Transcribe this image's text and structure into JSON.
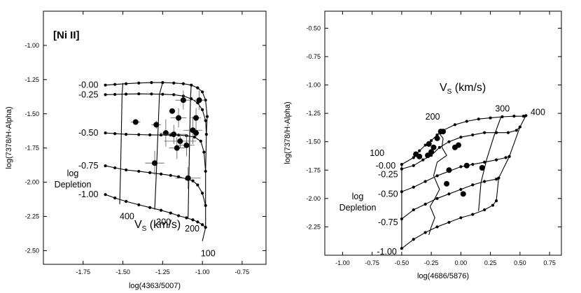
{
  "chart_data": [
    {
      "type": "line",
      "title": "[Ni II]",
      "xlabel": "log(4363/5007)",
      "ylabel": "log(7378/H-Alpha)",
      "xlim": [
        -2.0,
        -0.6
      ],
      "ylim": [
        -2.6,
        -0.75
      ],
      "xticks": [
        -1.75,
        -1.5,
        -1.25,
        -1.0,
        -0.75
      ],
      "yticks": [
        -1.0,
        -1.25,
        -1.5,
        -1.75,
        -2.0,
        -2.25,
        -2.5
      ],
      "grid": false,
      "depletion_label": [
        "log",
        "Depletion"
      ],
      "velocity_label": {
        "main": "V",
        "sub": "S",
        "unit": " (km/s)"
      },
      "series": [
        {
          "name": "-0.00",
          "x": [
            -1.61,
            -1.55,
            -1.48,
            -1.4,
            -1.32,
            -1.25,
            -1.18,
            -1.12,
            -1.07,
            -1.03,
            -1.0,
            -0.98,
            -0.97
          ],
          "y": [
            -1.29,
            -1.285,
            -1.28,
            -1.275,
            -1.272,
            -1.272,
            -1.275,
            -1.28,
            -1.29,
            -1.31,
            -1.34,
            -1.4,
            -1.52
          ]
        },
        {
          "name": "-0.25",
          "x": [
            -1.61,
            -1.55,
            -1.48,
            -1.4,
            -1.32,
            -1.25,
            -1.18,
            -1.12,
            -1.07,
            -1.03,
            -1.0,
            -0.98,
            -0.975
          ],
          "y": [
            -1.36,
            -1.358,
            -1.356,
            -1.354,
            -1.355,
            -1.357,
            -1.36,
            -1.37,
            -1.39,
            -1.42,
            -1.47,
            -1.55,
            -1.65
          ]
        },
        {
          "name": "-0.50",
          "x": [
            -1.61,
            -1.55,
            -1.48,
            -1.4,
            -1.33,
            -1.26,
            -1.2,
            -1.15,
            -1.1,
            -1.05,
            -1.01,
            -0.99,
            -0.98
          ],
          "y": [
            -1.64,
            -1.645,
            -1.65,
            -1.652,
            -1.654,
            -1.655,
            -1.655,
            -1.655,
            -1.66,
            -1.67,
            -1.7,
            -1.78,
            -1.92
          ]
        },
        {
          "name": "-0.75",
          "x": [
            -1.61,
            -1.55,
            -1.48,
            -1.4,
            -1.33,
            -1.26,
            -1.2,
            -1.15,
            -1.1,
            -1.06,
            -1.03,
            -1.0,
            -0.98
          ],
          "y": [
            -1.88,
            -1.895,
            -1.91,
            -1.92,
            -1.93,
            -1.94,
            -1.95,
            -1.96,
            -1.975,
            -1.99,
            -2.02,
            -2.08,
            -2.17
          ]
        },
        {
          "name": "-1.00",
          "x": [
            -1.61,
            -1.55,
            -1.48,
            -1.4,
            -1.33,
            -1.26,
            -1.2,
            -1.15,
            -1.1,
            -1.06,
            -1.03,
            -1.0,
            -0.98
          ],
          "y": [
            -2.09,
            -2.115,
            -2.14,
            -2.165,
            -2.185,
            -2.205,
            -2.225,
            -2.245,
            -2.26,
            -2.275,
            -2.29,
            -2.31,
            -2.33
          ]
        }
      ],
      "velocity_lines": [
        {
          "name": "400",
          "x": [
            -1.5,
            -1.505,
            -1.51,
            -1.515,
            -1.52
          ],
          "y": [
            -1.275,
            -1.355,
            -1.652,
            -1.925,
            -2.16
          ]
        },
        {
          "name": "300",
          "x": [
            -1.25,
            -1.27,
            -1.28,
            -1.29,
            -1.3
          ],
          "y": [
            -1.272,
            -1.357,
            -1.655,
            -1.94,
            -2.2
          ]
        },
        {
          "name": "200",
          "x": [
            -1.07,
            -1.075,
            -1.08,
            -1.085,
            -1.09
          ],
          "y": [
            -1.29,
            -1.39,
            -1.66,
            -1.975,
            -2.26
          ]
        },
        {
          "name": "100",
          "x": [
            -0.97,
            -0.975,
            -0.98,
            -0.98,
            -0.98,
            -0.99,
            -1.0
          ],
          "y": [
            -1.52,
            -1.65,
            -1.92,
            -2.17,
            -2.33,
            -2.38,
            -2.43
          ]
        }
      ],
      "series_labels": [
        {
          "text": "-0.00",
          "x": -1.78,
          "y": -1.29
        },
        {
          "text": "-0.25",
          "x": -1.78,
          "y": -1.36
        },
        {
          "text": "-0.50",
          "x": -1.78,
          "y": -1.64
        },
        {
          "text": "-0.75",
          "x": -1.78,
          "y": -1.88
        },
        {
          "text": "-1.00",
          "x": -1.78,
          "y": -2.09
        }
      ],
      "velocity_labels": [
        {
          "text": "400",
          "x": -1.52,
          "y": -2.25
        },
        {
          "text": "300",
          "x": -1.29,
          "y": -2.29
        },
        {
          "text": "200",
          "x": -1.11,
          "y": -2.34
        },
        {
          "text": "100",
          "x": -1.01,
          "y": -2.52
        }
      ],
      "observations": {
        "x": [
          -1.42,
          -1.29,
          -1.19,
          -1.15,
          -1.12,
          -1.04,
          -1.23,
          -1.18,
          -1.06,
          -1.04,
          -1.02,
          -1.14,
          -1.1,
          -1.16,
          -1.3,
          -1.09
        ],
        "y": [
          -1.56,
          -1.58,
          -1.48,
          -1.53,
          -1.4,
          -1.53,
          -1.64,
          -1.65,
          -1.62,
          -1.64,
          -1.4,
          -1.7,
          -1.73,
          -1.75,
          -1.86,
          -1.97
        ],
        "xerr": [
          0.03,
          0.03,
          0.02,
          0.05,
          0.05,
          0.03,
          0.04,
          0.08,
          0.06,
          0.02,
          0.04,
          0.1,
          0.05,
          0.05,
          0.06,
          0.08
        ],
        "yerr": [
          0.01,
          0.03,
          0.01,
          0.07,
          0.07,
          0.07,
          0.1,
          0.07,
          0.1,
          0.04,
          0.07,
          0.05,
          0.08,
          0.08,
          0.09,
          0.08
        ]
      }
    },
    {
      "type": "line",
      "title": "",
      "xlabel": "log(4686/5876)",
      "ylabel": "log(7378/H-Alpha)",
      "xlim": [
        -1.15,
        0.85
      ],
      "ylim": [
        -2.5,
        -0.35
      ],
      "xticks": [
        -1.0,
        -0.75,
        -0.5,
        -0.25,
        0.0,
        0.25,
        0.5,
        0.75
      ],
      "yticks": [
        -0.5,
        -0.75,
        -1.0,
        -1.25,
        -1.5,
        -1.75,
        -2.0,
        -2.25
      ],
      "grid": false,
      "depletion_label": [
        "log",
        "Depletion"
      ],
      "velocity_label": {
        "main": "V",
        "sub": "S",
        "unit": " (km/s)"
      },
      "series": [
        {
          "name": "-0.00",
          "x": [
            -0.5,
            -0.4,
            -0.35,
            -0.3,
            -0.25,
            -0.2,
            -0.15,
            -0.05,
            0.05,
            0.15,
            0.25,
            0.35,
            0.45,
            0.53,
            0.55
          ],
          "y": [
            -1.7,
            -1.64,
            -1.58,
            -1.53,
            -1.49,
            -1.44,
            -1.4,
            -1.35,
            -1.32,
            -1.3,
            -1.29,
            -1.28,
            -1.275,
            -1.275,
            -1.27
          ]
        },
        {
          "name": "-0.25",
          "x": [
            -0.5,
            -0.4,
            -0.32,
            -0.25,
            -0.18,
            -0.1,
            0.0,
            0.1,
            0.2,
            0.3,
            0.4,
            0.47,
            0.5
          ],
          "y": [
            -1.74,
            -1.71,
            -1.66,
            -1.62,
            -1.55,
            -1.5,
            -1.46,
            -1.44,
            -1.42,
            -1.42,
            -1.42,
            -1.4,
            -1.37
          ]
        },
        {
          "name": "-0.50",
          "x": [
            -0.5,
            -0.4,
            -0.3,
            -0.2,
            -0.1,
            0.0,
            0.1,
            0.2,
            0.3,
            0.38,
            0.41
          ],
          "y": [
            -1.94,
            -1.9,
            -1.85,
            -1.8,
            -1.76,
            -1.72,
            -1.7,
            -1.68,
            -1.66,
            -1.64,
            -1.63
          ]
        },
        {
          "name": "-0.75",
          "x": [
            -0.5,
            -0.4,
            -0.3,
            -0.2,
            -0.1,
            0.0,
            0.1,
            0.2,
            0.3,
            0.32
          ],
          "y": [
            -2.18,
            -2.1,
            -2.05,
            -2.0,
            -1.96,
            -1.92,
            -1.88,
            -1.85,
            -1.83,
            -1.82
          ]
        },
        {
          "name": "-1.00",
          "x": [
            -0.5,
            -0.4,
            -0.3,
            -0.2,
            -0.1,
            0.0,
            0.1,
            0.2,
            0.27,
            0.3
          ],
          "y": [
            -2.44,
            -2.36,
            -2.3,
            -2.25,
            -2.21,
            -2.17,
            -2.14,
            -2.1,
            -2.06,
            -2.02
          ]
        }
      ],
      "velocity_lines": [
        {
          "name": "400",
          "x": [
            0.55,
            0.5,
            0.41,
            0.32,
            0.3
          ],
          "y": [
            -1.27,
            -1.37,
            -1.63,
            -1.82,
            -2.02
          ]
        },
        {
          "name": "300",
          "x": [
            0.34,
            0.28,
            0.22,
            0.17,
            0.15
          ],
          "y": [
            -1.28,
            -1.45,
            -1.65,
            -1.86,
            -2.11
          ]
        },
        {
          "name": "200",
          "x": [
            -0.18,
            -0.15,
            -0.16,
            -0.12,
            -0.2,
            -0.23,
            -0.18,
            -0.22,
            -0.26,
            -0.22,
            -0.25,
            -0.27
          ],
          "y": [
            -1.43,
            -1.47,
            -1.55,
            -1.62,
            -1.68,
            -1.8,
            -1.92,
            -2.0,
            -2.07,
            -2.17,
            -2.25,
            -2.32
          ]
        },
        {
          "name": "100",
          "x": [
            -0.5,
            -0.5,
            -0.5,
            -0.5,
            -0.5
          ],
          "y": [
            -1.7,
            -1.74,
            -1.94,
            -2.18,
            -2.44
          ]
        }
      ],
      "series_labels": [
        {
          "text": "-0.00",
          "x": -0.72,
          "y": -1.71
        },
        {
          "text": "-0.25",
          "x": -0.7,
          "y": -1.79
        },
        {
          "text": "-0.50",
          "x": -0.7,
          "y": -1.96
        },
        {
          "text": "-0.75",
          "x": -0.7,
          "y": -2.21
        },
        {
          "text": "-1.00",
          "x": -0.71,
          "y": -2.47
        }
      ],
      "velocity_labels": [
        {
          "text": "100",
          "x": -0.77,
          "y": -1.6
        },
        {
          "text": "200",
          "x": -0.3,
          "y": -1.28
        },
        {
          "text": "300",
          "x": 0.29,
          "y": -1.21
        },
        {
          "text": "400",
          "x": 0.59,
          "y": -1.24
        }
      ],
      "observations": {
        "x": [
          -0.38,
          -0.35,
          -0.27,
          -0.25,
          -0.23,
          -0.2,
          -0.17,
          -0.15,
          -0.05,
          -0.02,
          0.05,
          0.18,
          -0.1,
          -0.12,
          -0.28,
          0.02
        ],
        "y": [
          -1.61,
          -1.63,
          -1.52,
          -1.59,
          -1.55,
          -1.47,
          -1.41,
          -1.41,
          -1.55,
          -1.53,
          -1.71,
          -1.73,
          -1.75,
          -1.87,
          -1.62,
          -1.96
        ]
      }
    }
  ]
}
